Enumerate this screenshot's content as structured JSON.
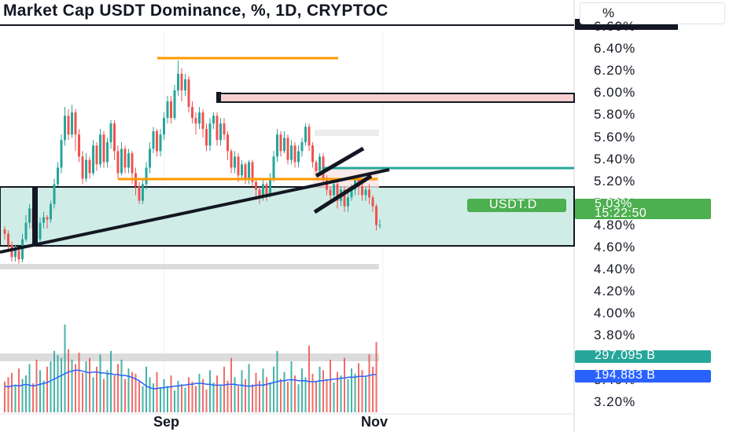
{
  "header": {
    "title": "Market Cap USDT Dominance, %, 1D, CRYPTOC",
    "unit": "%"
  },
  "price_axis": {
    "labels": [
      "6.60%",
      "6.40%",
      "6.20%",
      "6.00%",
      "5.80%",
      "5.60%",
      "5.40%",
      "5.20%",
      "5.00%",
      "4.80%",
      "4.60%",
      "4.40%",
      "4.20%",
      "4.00%",
      "3.80%",
      "3.60%",
      "3.40%",
      "3.20%"
    ],
    "last_value": "5.03%",
    "countdown": "15:22:50",
    "symbol_tag": "USDT.D",
    "volume_tag_1": "297.095 B",
    "volume_tag_2": "194.883 B"
  },
  "time_axis": {
    "labels": [
      "Sep",
      "Nov"
    ]
  },
  "colors": {
    "up": "#26a69a",
    "down": "#ef5350",
    "orange": "#ff9800",
    "teal_line": "#26a69a",
    "zone_fill": "#d0ece6",
    "pink_zone": "#f8d0d0",
    "price_tag": "#4caf50",
    "vol_tag_teal": "#26a69a",
    "vol_tag_blue": "#2962ff"
  },
  "chart_data": {
    "type": "candlestick",
    "title": "Market Cap USDT Dominance, %, 1D, CRYPTOC",
    "ylabel": "%",
    "ylim": [
      3.15,
      6.66
    ],
    "x_tick_labels": [
      "Sep",
      "Nov"
    ],
    "last_value": 5.03,
    "candles": [
      [
        4.99,
        4.95,
        5.02,
        4.9
      ],
      [
        4.95,
        4.85,
        4.98,
        4.8
      ],
      [
        4.85,
        4.74,
        4.88,
        4.7
      ],
      [
        4.74,
        4.8,
        4.85,
        4.7
      ],
      [
        4.8,
        4.72,
        4.82,
        4.68
      ],
      [
        4.72,
        4.9,
        4.95,
        4.69
      ],
      [
        4.9,
        5.05,
        5.12,
        4.88
      ],
      [
        5.05,
        5.18,
        5.22,
        5.0
      ],
      [
        5.18,
        5.0,
        5.2,
        4.95
      ],
      [
        5.0,
        4.9,
        5.05,
        4.86
      ],
      [
        4.9,
        5.05,
        5.1,
        4.88
      ],
      [
        5.05,
        5.1,
        5.15,
        5.0
      ],
      [
        5.1,
        5.08,
        5.12,
        5.0
      ],
      [
        5.08,
        5.22,
        5.25,
        5.05
      ],
      [
        5.22,
        5.4,
        5.45,
        5.18
      ],
      [
        5.4,
        5.55,
        5.6,
        5.38
      ],
      [
        5.55,
        5.8,
        5.85,
        5.5
      ],
      [
        5.8,
        6.02,
        6.1,
        5.75
      ],
      [
        6.02,
        5.85,
        6.08,
        5.8
      ],
      [
        5.85,
        6.05,
        6.12,
        5.82
      ],
      [
        6.05,
        5.85,
        6.08,
        5.7
      ],
      [
        5.85,
        5.65,
        5.9,
        5.6
      ],
      [
        5.65,
        5.45,
        5.7,
        5.4
      ],
      [
        5.45,
        5.62,
        5.68,
        5.42
      ],
      [
        5.62,
        5.5,
        5.65,
        5.45
      ],
      [
        5.5,
        5.75,
        5.8,
        5.48
      ],
      [
        5.75,
        5.58,
        5.78,
        5.52
      ],
      [
        5.58,
        5.85,
        5.9,
        5.55
      ],
      [
        5.85,
        5.6,
        5.88,
        5.55
      ],
      [
        5.6,
        5.78,
        5.82,
        5.55
      ],
      [
        5.78,
        5.95,
        5.98,
        5.72
      ],
      [
        5.95,
        5.7,
        5.98,
        5.62
      ],
      [
        5.7,
        5.5,
        5.75,
        5.45
      ],
      [
        5.5,
        5.72,
        5.78,
        5.48
      ],
      [
        5.72,
        5.55,
        5.75,
        5.5
      ],
      [
        5.55,
        5.68,
        5.72,
        5.5
      ],
      [
        5.68,
        5.5,
        5.7,
        5.4
      ],
      [
        5.5,
        5.38,
        5.55,
        5.3
      ],
      [
        5.38,
        5.25,
        5.42,
        5.22
      ],
      [
        5.25,
        5.4,
        5.45,
        5.22
      ],
      [
        5.4,
        5.55,
        5.6,
        5.35
      ],
      [
        5.55,
        5.72,
        5.78,
        5.5
      ],
      [
        5.72,
        5.88,
        5.92,
        5.68
      ],
      [
        5.88,
        5.7,
        5.9,
        5.65
      ],
      [
        5.7,
        5.85,
        5.9,
        5.65
      ],
      [
        5.85,
        6.0,
        6.05,
        5.8
      ],
      [
        6.0,
        6.15,
        6.2,
        5.95
      ],
      [
        6.15,
        6.0,
        6.2,
        5.95
      ],
      [
        6.0,
        6.25,
        6.3,
        5.98
      ],
      [
        6.25,
        6.4,
        6.52,
        6.2
      ],
      [
        6.4,
        6.25,
        6.45,
        6.15
      ],
      [
        6.25,
        6.35,
        6.4,
        6.2
      ],
      [
        6.35,
        6.1,
        6.38,
        6.05
      ],
      [
        6.1,
        6.0,
        6.15,
        5.95
      ],
      [
        6.0,
        5.95,
        6.05,
        5.85
      ],
      [
        5.95,
        6.05,
        6.1,
        5.9
      ],
      [
        6.05,
        5.9,
        6.08,
        5.82
      ],
      [
        5.9,
        5.75,
        5.95,
        5.7
      ],
      [
        5.75,
        5.95,
        6.0,
        5.7
      ],
      [
        5.95,
        6.02,
        6.05,
        5.9
      ],
      [
        6.02,
        5.8,
        6.05,
        5.75
      ],
      [
        5.8,
        5.95,
        6.0,
        5.75
      ],
      [
        5.95,
        5.85,
        6.0,
        5.8
      ],
      [
        5.85,
        5.7,
        5.88,
        5.62
      ],
      [
        5.7,
        5.55,
        5.72,
        5.5
      ],
      [
        5.55,
        5.65,
        5.7,
        5.5
      ],
      [
        5.65,
        5.48,
        5.68,
        5.42
      ],
      [
        5.48,
        5.58,
        5.62,
        5.45
      ],
      [
        5.58,
        5.45,
        5.6,
        5.4
      ],
      [
        5.45,
        5.6,
        5.62,
        5.4
      ],
      [
        5.6,
        5.42,
        5.62,
        5.38
      ],
      [
        5.42,
        5.35,
        5.45,
        5.28
      ],
      [
        5.35,
        5.28,
        5.38,
        5.22
      ],
      [
        5.28,
        5.4,
        5.45,
        5.25
      ],
      [
        5.4,
        5.3,
        5.42,
        5.25
      ],
      [
        5.3,
        5.45,
        5.5,
        5.28
      ],
      [
        5.45,
        5.65,
        5.7,
        5.42
      ],
      [
        5.65,
        5.85,
        5.9,
        5.6
      ],
      [
        5.85,
        5.7,
        5.88,
        5.65
      ],
      [
        5.7,
        5.82,
        5.88,
        5.68
      ],
      [
        5.82,
        5.62,
        5.85,
        5.58
      ],
      [
        5.62,
        5.75,
        5.8,
        5.58
      ],
      [
        5.75,
        5.6,
        5.78,
        5.55
      ],
      [
        5.6,
        5.7,
        5.75,
        5.55
      ],
      [
        5.7,
        5.78,
        5.82,
        5.65
      ],
      [
        5.78,
        5.92,
        5.95,
        5.75
      ],
      [
        5.92,
        5.75,
        5.95,
        5.7
      ],
      [
        5.75,
        5.6,
        5.78,
        5.55
      ],
      [
        5.6,
        5.52,
        5.62,
        5.5
      ],
      [
        5.52,
        5.65,
        5.68,
        5.5
      ],
      [
        5.65,
        5.45,
        5.68,
        5.4
      ],
      [
        5.45,
        5.35,
        5.48,
        5.3
      ],
      [
        5.35,
        5.3,
        5.38,
        5.22
      ],
      [
        5.3,
        5.4,
        5.45,
        5.28
      ],
      [
        5.4,
        5.25,
        5.42,
        5.18
      ],
      [
        5.25,
        5.35,
        5.38,
        5.2
      ],
      [
        5.35,
        5.2,
        5.38,
        5.15
      ],
      [
        5.2,
        5.28,
        5.32,
        5.15
      ],
      [
        5.28,
        5.35,
        5.4,
        5.25
      ],
      [
        5.35,
        5.45,
        5.48,
        5.3
      ],
      [
        5.45,
        5.38,
        5.48,
        5.3
      ],
      [
        5.38,
        5.3,
        5.42,
        5.25
      ],
      [
        5.3,
        5.35,
        5.38,
        5.25
      ],
      [
        5.35,
        5.28,
        5.4,
        5.22
      ],
      [
        5.28,
        5.2,
        5.3,
        5.15
      ],
      [
        5.2,
        5.03,
        5.22,
        4.98
      ],
      [
        5.03,
        5.03,
        5.08,
        5.0
      ]
    ],
    "volume_ma": [
      0.3,
      0.29,
      0.3,
      0.31,
      0.3,
      0.31,
      0.32,
      0.31,
      0.3,
      0.31,
      0.32,
      0.33,
      0.34,
      0.36,
      0.38,
      0.4,
      0.42,
      0.44,
      0.46,
      0.47,
      0.48,
      0.48,
      0.47,
      0.46,
      0.45,
      0.46,
      0.46,
      0.45,
      0.45,
      0.44,
      0.44,
      0.43,
      0.43,
      0.42,
      0.42,
      0.41,
      0.4,
      0.38,
      0.36,
      0.33,
      0.3,
      0.28,
      0.27,
      0.27,
      0.28,
      0.28,
      0.29,
      0.29,
      0.3,
      0.3,
      0.31,
      0.31,
      0.32,
      0.32,
      0.33,
      0.33,
      0.33,
      0.32,
      0.32,
      0.31,
      0.31,
      0.31,
      0.31,
      0.32,
      0.32,
      0.32,
      0.31,
      0.31,
      0.3,
      0.3,
      0.3,
      0.31,
      0.31,
      0.31,
      0.32,
      0.33,
      0.34,
      0.35,
      0.36,
      0.36,
      0.37,
      0.37,
      0.37,
      0.36,
      0.36,
      0.36,
      0.35,
      0.35,
      0.35,
      0.36,
      0.36,
      0.37,
      0.37,
      0.38,
      0.38,
      0.39,
      0.39,
      0.4,
      0.4,
      0.4,
      0.41,
      0.41,
      0.41,
      0.42,
      0.43,
      0.43
    ],
    "volumes": [
      0.35,
      0.4,
      0.45,
      0.3,
      0.5,
      0.38,
      0.42,
      0.55,
      0.33,
      0.6,
      0.48,
      0.36,
      0.52,
      0.58,
      0.7,
      0.65,
      0.62,
      1.0,
      0.72,
      0.6,
      0.55,
      0.68,
      0.45,
      0.58,
      0.62,
      0.4,
      0.52,
      0.66,
      0.38,
      0.48,
      0.7,
      0.42,
      0.55,
      0.6,
      0.38,
      0.5,
      0.46,
      0.44,
      0.35,
      0.3,
      0.52,
      0.4,
      0.33,
      0.46,
      0.28,
      0.38,
      0.3,
      0.42,
      0.25,
      0.36,
      0.32,
      0.28,
      0.4,
      0.35,
      0.3,
      0.44,
      0.38,
      0.26,
      0.48,
      0.34,
      0.42,
      0.3,
      0.52,
      0.36,
      0.62,
      0.4,
      0.3,
      0.48,
      0.38,
      0.55,
      0.32,
      0.45,
      0.36,
      0.5,
      0.4,
      0.34,
      0.52,
      0.7,
      0.38,
      0.46,
      0.35,
      0.58,
      0.42,
      0.32,
      0.5,
      0.4,
      0.76,
      0.44,
      0.36,
      0.52,
      0.48,
      0.38,
      0.6,
      0.34,
      0.46,
      0.42,
      0.62,
      0.38,
      0.5,
      0.44,
      0.56,
      0.48,
      0.4,
      0.66,
      0.52,
      0.8
    ]
  }
}
